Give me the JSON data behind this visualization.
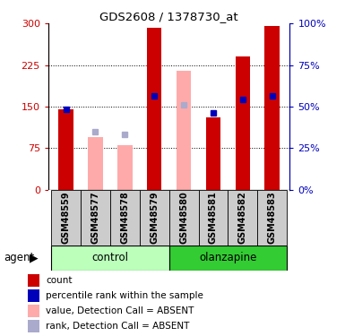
{
  "title": "GDS2608 / 1378730_at",
  "samples": [
    "GSM48559",
    "GSM48577",
    "GSM48578",
    "GSM48579",
    "GSM48580",
    "GSM48581",
    "GSM48582",
    "GSM48583"
  ],
  "red_bars": [
    145,
    0,
    0,
    293,
    0,
    130,
    240,
    295
  ],
  "pink_bars": [
    0,
    95,
    80,
    0,
    215,
    0,
    0,
    0
  ],
  "blue_squares_val": [
    145,
    0,
    0,
    170,
    0,
    138,
    163,
    170
  ],
  "lightblue_squares_val": [
    0,
    105,
    100,
    0,
    153,
    0,
    0,
    0
  ],
  "ylim": [
    0,
    300
  ],
  "y2lim": [
    0,
    100
  ],
  "yticks": [
    0,
    75,
    150,
    225,
    300
  ],
  "y2ticks": [
    0,
    25,
    50,
    75,
    100
  ],
  "bar_width": 0.5,
  "red_color": "#cc0000",
  "pink_color": "#ffaaaa",
  "blue_color": "#0000bb",
  "lightblue_color": "#aaaacc",
  "control_color": "#bbffbb",
  "olanzapine_color": "#33cc33",
  "gray_bg": "#cccccc",
  "legend_labels": [
    "count",
    "percentile rank within the sample",
    "value, Detection Call = ABSENT",
    "rank, Detection Call = ABSENT"
  ],
  "legend_colors": [
    "#cc0000",
    "#0000bb",
    "#ffaaaa",
    "#aaaacc"
  ]
}
